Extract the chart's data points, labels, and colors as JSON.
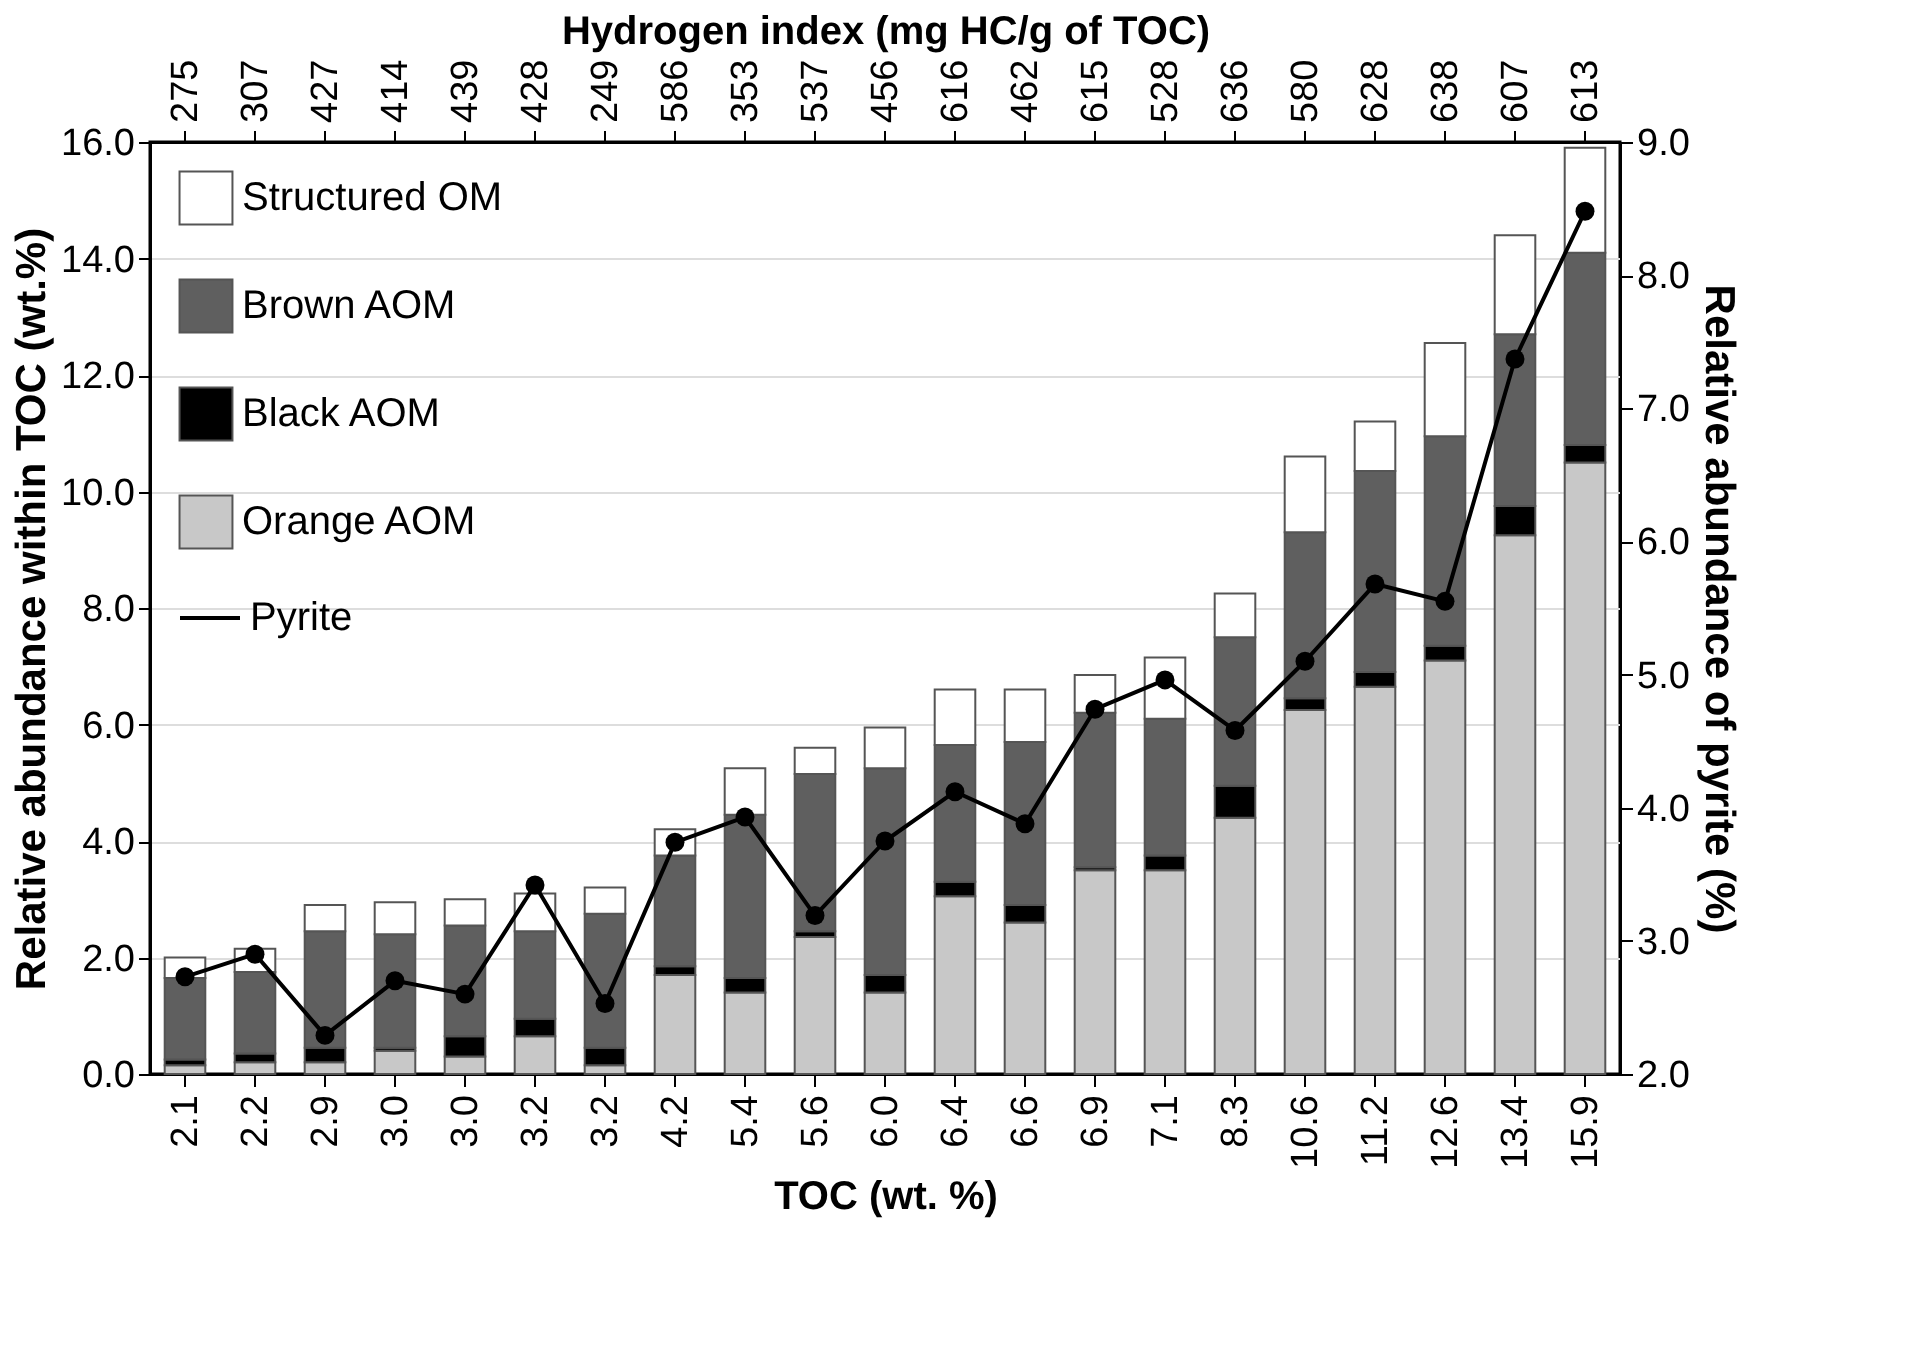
{
  "chart_data": {
    "type": "bar",
    "stacked": true,
    "xlabel": "TOC (wt. %)",
    "x2label": "Hydrogen index (mg HC/g of TOC)",
    "ylabel": "Relative abundance within TOC (wt.%)",
    "y2label": "Relative abundance of pyrite (%)",
    "categories": [
      "2.1",
      "2.2",
      "2.9",
      "3.0",
      "3.0",
      "3.2",
      "3.2",
      "4.2",
      "5.4",
      "5.6",
      "6.0",
      "6.4",
      "6.6",
      "6.9",
      "7.1",
      "8.3",
      "10.6",
      "11.2",
      "12.6",
      "13.4",
      "15.9"
    ],
    "annotations": [
      "275",
      "307",
      "427",
      "414",
      "439",
      "428",
      "249",
      "586",
      "353",
      "537",
      "456",
      "616",
      "462",
      "615",
      "528",
      "636",
      "580",
      "628",
      "638",
      "607",
      "613"
    ],
    "series": [
      {
        "name": "Orange AOM",
        "color": "#c8c8c8",
        "values": [
          0.15,
          0.2,
          0.2,
          0.4,
          0.3,
          0.65,
          0.15,
          1.7,
          1.4,
          2.35,
          1.4,
          3.05,
          2.6,
          3.5,
          3.5,
          4.4,
          6.25,
          6.65,
          7.1,
          9.25,
          10.5
        ]
      },
      {
        "name": "Black AOM",
        "color": "#000000",
        "values": [
          0.1,
          0.15,
          0.25,
          0.05,
          0.35,
          0.3,
          0.3,
          0.15,
          0.25,
          0.1,
          0.3,
          0.25,
          0.3,
          0.05,
          0.25,
          0.55,
          0.2,
          0.25,
          0.25,
          0.5,
          0.3
        ]
      },
      {
        "name": "Brown AOM",
        "color": "#5f5f5f",
        "values": [
          1.4,
          1.4,
          2.0,
          1.95,
          1.9,
          1.5,
          2.3,
          1.9,
          2.8,
          2.7,
          3.55,
          2.35,
          2.8,
          2.65,
          2.35,
          2.55,
          2.85,
          3.45,
          3.6,
          2.95,
          3.3
        ]
      },
      {
        "name": "Structured OM",
        "color": "#ffffff",
        "values": [
          0.35,
          0.4,
          0.45,
          0.55,
          0.45,
          0.65,
          0.45,
          0.45,
          0.8,
          0.45,
          0.7,
          0.95,
          0.9,
          0.65,
          1.05,
          0.75,
          1.3,
          0.85,
          1.6,
          1.7,
          1.8
        ]
      },
      {
        "name": "Pyrite",
        "type": "line",
        "axis": "y2",
        "color": "#000000",
        "marker": "circle",
        "values": [
          2.73,
          2.9,
          2.29,
          2.7,
          2.6,
          3.42,
          2.53,
          3.74,
          3.93,
          3.19,
          3.75,
          4.12,
          3.88,
          4.74,
          4.96,
          4.58,
          5.1,
          5.68,
          5.55,
          7.37,
          8.48
        ]
      }
    ],
    "ylim": [
      0,
      16
    ],
    "yticks": [
      {
        "value": 0,
        "label": "0.0"
      },
      {
        "value": 2,
        "label": "2.0"
      },
      {
        "value": 4,
        "label": "4.0"
      },
      {
        "value": 6,
        "label": "6.0"
      },
      {
        "value": 8,
        "label": "8.0"
      },
      {
        "value": 10,
        "label": "10.0"
      },
      {
        "value": 12,
        "label": "12.0"
      },
      {
        "value": 14,
        "label": "14.0"
      },
      {
        "value": 16,
        "label": "16.0"
      }
    ],
    "y2lim": [
      2,
      9
    ],
    "y2ticks": [
      {
        "value": 2,
        "label": "2.0"
      },
      {
        "value": 3,
        "label": "3.0"
      },
      {
        "value": 4,
        "label": "4.0"
      },
      {
        "value": 5,
        "label": "5.0"
      },
      {
        "value": 6,
        "label": "6.0"
      },
      {
        "value": 7,
        "label": "7.0"
      },
      {
        "value": 8,
        "label": "8.0"
      },
      {
        "value": 9,
        "label": "9.0"
      }
    ],
    "grid": "y",
    "legend": "top left"
  }
}
